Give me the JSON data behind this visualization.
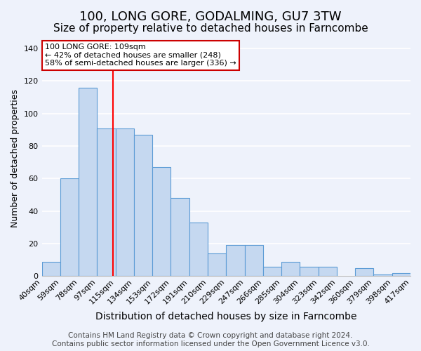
{
  "title": "100, LONG GORE, GODALMING, GU7 3TW",
  "subtitle": "Size of property relative to detached houses in Farncombe",
  "xlabel": "Distribution of detached houses by size in Farncombe",
  "ylabel": "Number of detached properties",
  "categories": [
    "40sqm",
    "59sqm",
    "78sqm",
    "97sqm",
    "115sqm",
    "134sqm",
    "153sqm",
    "172sqm",
    "191sqm",
    "210sqm",
    "229sqm",
    "247sqm",
    "266sqm",
    "285sqm",
    "304sqm",
    "323sqm",
    "342sqm",
    "360sqm",
    "379sqm",
    "398sqm",
    "417sqm"
  ],
  "bar_heights": [
    9,
    60,
    116,
    91,
    91,
    87,
    67,
    48,
    33,
    14,
    19,
    19,
    6,
    9,
    6,
    6,
    0,
    5,
    1,
    2
  ],
  "bar_color": "#c5d8f0",
  "bar_edge_color": "#5b9bd5",
  "ylim": [
    0,
    145
  ],
  "yticks": [
    0,
    20,
    40,
    60,
    80,
    100,
    120,
    140
  ],
  "red_line_x": 3.85,
  "annotation_text": "100 LONG GORE: 109sqm\n← 42% of detached houses are smaller (248)\n58% of semi-detached houses are larger (336) →",
  "annotation_box_color": "#ffffff",
  "annotation_box_edge_color": "#cc0000",
  "footer_line1": "Contains HM Land Registry data © Crown copyright and database right 2024.",
  "footer_line2": "Contains public sector information licensed under the Open Government Licence v3.0.",
  "background_color": "#eef2fb",
  "grid_color": "#ffffff",
  "title_fontsize": 13,
  "subtitle_fontsize": 11,
  "xlabel_fontsize": 10,
  "ylabel_fontsize": 9,
  "tick_fontsize": 8,
  "footer_fontsize": 7.5
}
